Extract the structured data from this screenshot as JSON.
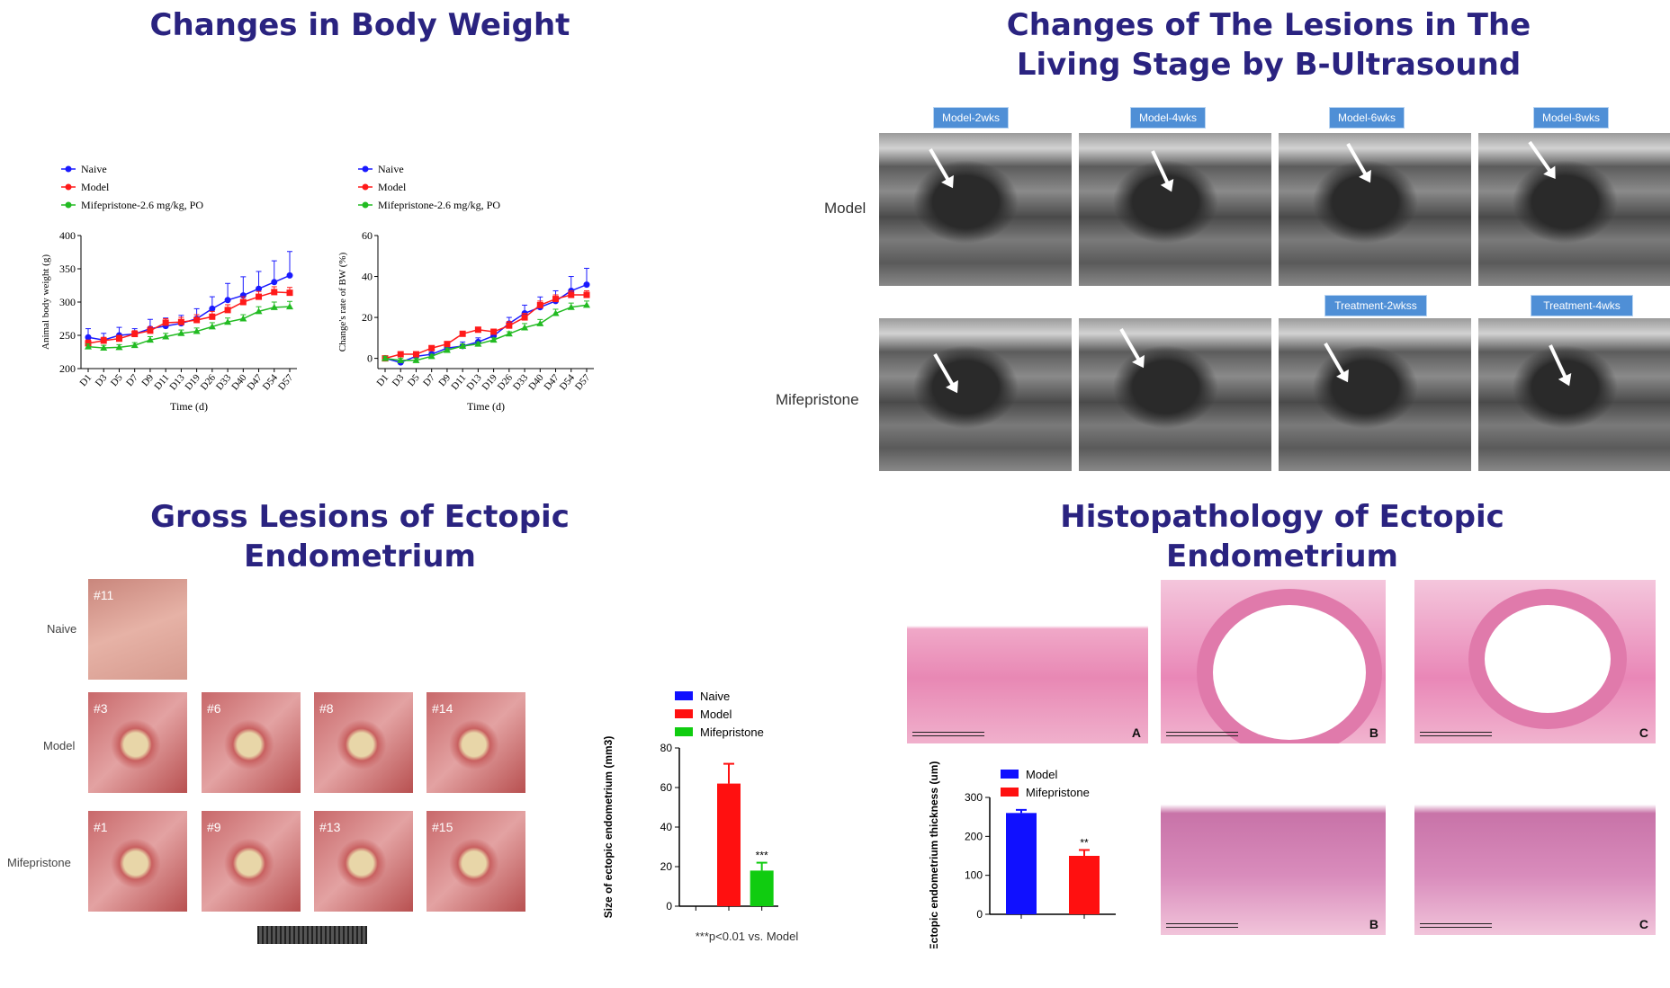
{
  "panels": {
    "weight_title": "Changes in Body Weight",
    "ultrasound_title_line1": "Changes of The Lesions in The",
    "ultrasound_title_line2": "Living Stage by B-Ultrasound",
    "gross_title_line1": "Gross Lesions of Ectopic",
    "gross_title_line2": "Endometrium",
    "histo_title_line1": "Histopathology of Ectopic",
    "histo_title_line2": "Endometrium"
  },
  "ultrasound": {
    "top_labels": [
      "Model-2wks",
      "Model-4wks",
      "Model-6wks",
      "Model-8wks"
    ],
    "bottom_labels": [
      "Treatment-2wkss",
      "Treatment-4wks"
    ],
    "row_labels": [
      "Model",
      "Mifepristone"
    ]
  },
  "gross": {
    "row_labels": [
      "Naive",
      "Model",
      "Mifepristone"
    ],
    "naive_ids": [
      "#11"
    ],
    "model_ids": [
      "#3",
      "#6",
      "#8",
      "#14"
    ],
    "mife_ids": [
      "#1",
      "#9",
      "#13",
      "#15"
    ]
  },
  "histo": {
    "letters": [
      "A",
      "B",
      "C",
      "B",
      "C"
    ]
  },
  "chart_data": [
    {
      "type": "line",
      "x": [
        "D1",
        "D3",
        "D5",
        "D7",
        "D9",
        "D11",
        "D13",
        "D19",
        "D26",
        "D33",
        "D40",
        "D47",
        "D54",
        "D57"
      ],
      "series": [
        {
          "name": "Naive",
          "color": "#1a1aff",
          "values": [
            247,
            243,
            250,
            252,
            260,
            264,
            268,
            275,
            290,
            303,
            310,
            320,
            330,
            340
          ],
          "errors": [
            13,
            10,
            12,
            8,
            14,
            12,
            12,
            15,
            18,
            25,
            28,
            26,
            32,
            36
          ]
        },
        {
          "name": "Model",
          "color": "#ff1a1a",
          "values": [
            238,
            242,
            245,
            252,
            257,
            269,
            270,
            273,
            278,
            288,
            300,
            308,
            315,
            314
          ],
          "errors": [
            5,
            5,
            5,
            5,
            6,
            6,
            7,
            8,
            8,
            8,
            8,
            8,
            8,
            8
          ]
        },
        {
          "name": "Mifepristone-2.6 mg/kg, PO",
          "color": "#22bb22",
          "values": [
            233,
            231,
            232,
            235,
            243,
            248,
            253,
            256,
            263,
            270,
            275,
            286,
            292,
            293
          ],
          "errors": [
            4,
            4,
            4,
            4,
            5,
            5,
            5,
            5,
            6,
            6,
            6,
            7,
            8,
            8
          ]
        }
      ],
      "xlabel": "Time (d)",
      "ylabel": "Animal body weight (g)",
      "ylim": [
        200,
        400
      ],
      "yticks": [
        200,
        250,
        300,
        350,
        400
      ],
      "legend": "top-left"
    },
    {
      "type": "line",
      "x": [
        "D1",
        "D3",
        "D5",
        "D7",
        "D9",
        "D11",
        "D13",
        "D19",
        "D26",
        "D33",
        "D40",
        "D47",
        "D54",
        "D57"
      ],
      "series": [
        {
          "name": "Naive",
          "color": "#1a1aff",
          "values": [
            0,
            -2,
            1,
            2,
            5,
            6,
            8,
            11,
            17,
            22,
            25,
            28,
            33,
            36
          ],
          "errors": [
            1,
            1,
            1,
            1,
            2,
            2,
            2,
            2,
            3,
            4,
            5,
            5,
            7,
            8
          ]
        },
        {
          "name": "Model",
          "color": "#ff1a1a",
          "values": [
            0,
            2,
            2,
            5,
            7,
            12,
            14,
            13,
            16,
            20,
            26,
            29,
            31,
            31
          ],
          "errors": [
            1,
            1,
            1,
            1,
            1,
            1,
            1,
            1,
            2,
            2,
            2,
            2,
            2,
            2
          ]
        },
        {
          "name": "Mifepristone-2.6 mg/kg, PO",
          "color": "#22bb22",
          "values": [
            0,
            -1,
            -1,
            1,
            4,
            6,
            7,
            9,
            12,
            15,
            17,
            22,
            25,
            26
          ],
          "errors": [
            1,
            1,
            1,
            1,
            1,
            1,
            1,
            1,
            1,
            2,
            2,
            2,
            2,
            2
          ]
        }
      ],
      "xlabel": "Time (d)",
      "ylabel": "Change's rate of BW (%)",
      "ylim": [
        -5,
        60
      ],
      "yticks": [
        0,
        20,
        40,
        60
      ],
      "legend": "top-left"
    },
    {
      "type": "bar",
      "categories": [
        "Naive",
        "Model",
        "Mifepristone"
      ],
      "values": [
        0,
        62,
        18
      ],
      "errors": [
        0,
        10,
        4
      ],
      "colors": [
        "#1010ff",
        "#ff1010",
        "#10cc10"
      ],
      "annotations": [
        "",
        "",
        "***"
      ],
      "ylabel": "Size of ectopic endometrium (mm3)",
      "ylim": [
        0,
        80
      ],
      "yticks": [
        0,
        20,
        40,
        60,
        80
      ],
      "note": "***p<0.01 vs. Model",
      "legend": "top"
    },
    {
      "type": "bar",
      "categories": [
        "Model",
        "Mifepristone"
      ],
      "values": [
        260,
        150
      ],
      "errors": [
        8,
        15
      ],
      "colors": [
        "#1010ff",
        "#ff1010"
      ],
      "annotations": [
        "",
        "**"
      ],
      "ylabel": "Ectopic endometrium thickness (um)",
      "ylim": [
        0,
        300
      ],
      "yticks": [
        0,
        100,
        200,
        300
      ],
      "legend": "top"
    }
  ]
}
